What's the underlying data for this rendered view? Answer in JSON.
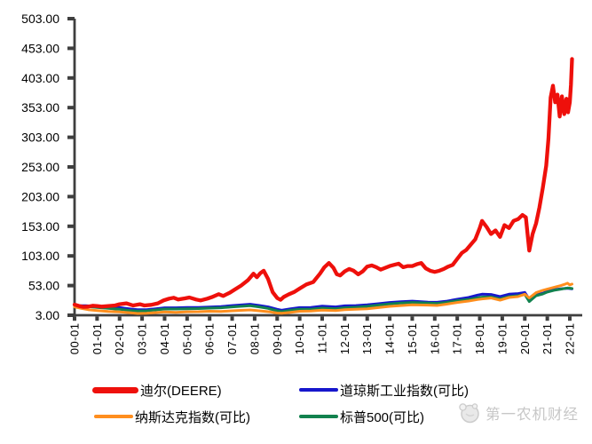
{
  "watermark": {
    "text": "第一农机财经",
    "logo": "panda-logo-icon"
  },
  "chart_data": {
    "type": "line",
    "title": "",
    "legend_position": "bottom",
    "x_axis": {
      "tick_labels": [
        "00-01",
        "01-01",
        "02-01",
        "03-01",
        "04-01",
        "05-01",
        "06-01",
        "07-01",
        "08-01",
        "09-01",
        "10-01",
        "11-01",
        "12-01",
        "13-01",
        "14-01",
        "15-01",
        "16-01",
        "17-01",
        "18-01",
        "19-01",
        "20-01",
        "21-01",
        "22-01"
      ],
      "tick_years": [
        2000,
        2001,
        2002,
        2003,
        2004,
        2005,
        2006,
        2007,
        2008,
        2009,
        2010,
        2011,
        2012,
        2013,
        2014,
        2015,
        2016,
        2017,
        2018,
        2019,
        2020,
        2021,
        2022
      ],
      "label_rotation_deg": -90
    },
    "y_axis": {
      "min": 3,
      "max": 503,
      "tick_values": [
        503,
        453,
        403,
        353,
        303,
        253,
        203,
        153,
        103,
        53,
        3
      ],
      "tick_labels": [
        "503.00",
        "453.00",
        "403.00",
        "353.00",
        "303.00",
        "253.00",
        "203.00",
        "153.00",
        "103.00",
        "53.00",
        "3.00"
      ]
    },
    "grid": false,
    "axis_color": "#3f3f3f",
    "series": [
      {
        "name": "迪尔(DEERE)",
        "color": "#ee100b",
        "width": 4.3,
        "points": [
          [
            2000.0,
            21
          ],
          [
            2000.2,
            18.5
          ],
          [
            2000.4,
            17
          ],
          [
            2000.6,
            17.5
          ],
          [
            2000.8,
            19
          ],
          [
            2001.0,
            18.5
          ],
          [
            2001.2,
            17.5
          ],
          [
            2001.5,
            18.5
          ],
          [
            2001.8,
            19.5
          ],
          [
            2002.0,
            21.5
          ],
          [
            2002.3,
            23
          ],
          [
            2002.6,
            19.5
          ],
          [
            2002.9,
            21.5
          ],
          [
            2003.1,
            19.5
          ],
          [
            2003.4,
            20.5
          ],
          [
            2003.7,
            23
          ],
          [
            2003.95,
            28
          ],
          [
            2004.2,
            31
          ],
          [
            2004.4,
            32.5
          ],
          [
            2004.6,
            29.5
          ],
          [
            2004.9,
            31.5
          ],
          [
            2005.1,
            33
          ],
          [
            2005.4,
            29.5
          ],
          [
            2005.6,
            28
          ],
          [
            2005.9,
            31
          ],
          [
            2006.1,
            33.5
          ],
          [
            2006.4,
            38.5
          ],
          [
            2006.6,
            35.5
          ],
          [
            2006.9,
            41
          ],
          [
            2007.1,
            46
          ],
          [
            2007.4,
            53
          ],
          [
            2007.7,
            62
          ],
          [
            2007.95,
            73
          ],
          [
            2008.1,
            67
          ],
          [
            2008.25,
            74
          ],
          [
            2008.4,
            78
          ],
          [
            2008.6,
            64
          ],
          [
            2008.8,
            42
          ],
          [
            2009.0,
            32
          ],
          [
            2009.15,
            29
          ],
          [
            2009.3,
            34
          ],
          [
            2009.5,
            38
          ],
          [
            2009.75,
            42
          ],
          [
            2010.0,
            48
          ],
          [
            2010.3,
            55
          ],
          [
            2010.6,
            59
          ],
          [
            2010.9,
            73
          ],
          [
            2011.1,
            84
          ],
          [
            2011.3,
            91
          ],
          [
            2011.5,
            83
          ],
          [
            2011.65,
            72
          ],
          [
            2011.8,
            70
          ],
          [
            2012.0,
            77
          ],
          [
            2012.2,
            81
          ],
          [
            2012.4,
            78
          ],
          [
            2012.6,
            72
          ],
          [
            2012.8,
            77
          ],
          [
            2013.0,
            85
          ],
          [
            2013.2,
            87
          ],
          [
            2013.4,
            84
          ],
          [
            2013.6,
            80
          ],
          [
            2013.8,
            83
          ],
          [
            2014.0,
            86
          ],
          [
            2014.2,
            88
          ],
          [
            2014.4,
            90
          ],
          [
            2014.6,
            84
          ],
          [
            2014.8,
            86
          ],
          [
            2015.0,
            86
          ],
          [
            2015.2,
            89
          ],
          [
            2015.4,
            91
          ],
          [
            2015.6,
            82
          ],
          [
            2015.8,
            78
          ],
          [
            2016.0,
            76
          ],
          [
            2016.2,
            78
          ],
          [
            2016.4,
            81
          ],
          [
            2016.6,
            85
          ],
          [
            2016.8,
            88
          ],
          [
            2017.0,
            98
          ],
          [
            2017.2,
            108
          ],
          [
            2017.4,
            113
          ],
          [
            2017.6,
            122
          ],
          [
            2017.8,
            131
          ],
          [
            2018.0,
            150
          ],
          [
            2018.1,
            162
          ],
          [
            2018.3,
            152
          ],
          [
            2018.5,
            140
          ],
          [
            2018.7,
            146
          ],
          [
            2018.9,
            135
          ],
          [
            2019.1,
            155
          ],
          [
            2019.3,
            150
          ],
          [
            2019.5,
            162
          ],
          [
            2019.7,
            165
          ],
          [
            2019.9,
            172
          ],
          [
            2020.05,
            168
          ],
          [
            2020.2,
            112
          ],
          [
            2020.35,
            140
          ],
          [
            2020.5,
            158
          ],
          [
            2020.65,
            185
          ],
          [
            2020.8,
            218
          ],
          [
            2020.95,
            255
          ],
          [
            2021.05,
            300
          ],
          [
            2021.15,
            370
          ],
          [
            2021.25,
            390
          ],
          [
            2021.35,
            362
          ],
          [
            2021.45,
            375
          ],
          [
            2021.55,
            338
          ],
          [
            2021.65,
            372
          ],
          [
            2021.75,
            342
          ],
          [
            2021.85,
            368
          ],
          [
            2021.92,
            345
          ],
          [
            2022.0,
            362
          ],
          [
            2022.05,
            392
          ],
          [
            2022.1,
            435
          ]
        ]
      },
      {
        "name": "道琼斯工业指数(可比)",
        "color": "#1616cc",
        "width": 3,
        "points": [
          [
            2000.0,
            19
          ],
          [
            2000.5,
            19
          ],
          [
            2001.0,
            18
          ],
          [
            2001.5,
            17
          ],
          [
            2002.0,
            16
          ],
          [
            2002.5,
            13.5
          ],
          [
            2002.8,
            12.5
          ],
          [
            2003.2,
            12.5
          ],
          [
            2003.6,
            14
          ],
          [
            2004.0,
            15.5
          ],
          [
            2004.5,
            15.5
          ],
          [
            2005.0,
            16
          ],
          [
            2005.5,
            16
          ],
          [
            2006.0,
            16.8
          ],
          [
            2006.5,
            17.5
          ],
          [
            2007.0,
            19.3
          ],
          [
            2007.8,
            21.5
          ],
          [
            2008.2,
            19.5
          ],
          [
            2008.6,
            17
          ],
          [
            2009.0,
            13
          ],
          [
            2009.2,
            11.5
          ],
          [
            2009.6,
            14
          ],
          [
            2010.0,
            15.8
          ],
          [
            2010.5,
            16
          ],
          [
            2011.0,
            18.2
          ],
          [
            2011.6,
            17
          ],
          [
            2012.0,
            18.8
          ],
          [
            2012.5,
            19.3
          ],
          [
            2013.0,
            20.5
          ],
          [
            2013.5,
            22.5
          ],
          [
            2014.0,
            24.5
          ],
          [
            2014.5,
            25.8
          ],
          [
            2015.0,
            26.8
          ],
          [
            2015.7,
            25
          ],
          [
            2016.1,
            24.8
          ],
          [
            2016.5,
            26.5
          ],
          [
            2017.0,
            30
          ],
          [
            2017.5,
            33
          ],
          [
            2017.9,
            37
          ],
          [
            2018.1,
            38.5
          ],
          [
            2018.5,
            38
          ],
          [
            2018.9,
            34.5
          ],
          [
            2019.3,
            38.5
          ],
          [
            2019.7,
            39.5
          ],
          [
            2020.0,
            41.5
          ],
          [
            2020.2,
            30
          ],
          [
            2020.5,
            38
          ],
          [
            2020.8,
            40
          ],
          [
            2021.0,
            43.5
          ],
          [
            2021.3,
            46
          ],
          [
            2021.6,
            47.5
          ],
          [
            2021.9,
            48.5
          ],
          [
            2022.1,
            47.5
          ]
        ]
      },
      {
        "name": "纳斯达克指数(可比)",
        "color": "#ff8e1e",
        "width": 3,
        "points": [
          [
            2000.0,
            17
          ],
          [
            2000.3,
            14.5
          ],
          [
            2000.6,
            12.5
          ],
          [
            2001.0,
            11
          ],
          [
            2001.5,
            9.5
          ],
          [
            2002.0,
            8.5
          ],
          [
            2002.5,
            7
          ],
          [
            2002.8,
            6
          ],
          [
            2003.2,
            6.5
          ],
          [
            2003.6,
            7.5
          ],
          [
            2004.0,
            8.5
          ],
          [
            2004.5,
            8
          ],
          [
            2005.0,
            8.8
          ],
          [
            2005.5,
            9
          ],
          [
            2006.0,
            9.8
          ],
          [
            2006.5,
            9.3
          ],
          [
            2007.0,
            10.5
          ],
          [
            2007.8,
            12
          ],
          [
            2008.2,
            10.5
          ],
          [
            2008.7,
            8.5
          ],
          [
            2009.0,
            6.8
          ],
          [
            2009.2,
            6.3
          ],
          [
            2009.6,
            8
          ],
          [
            2010.0,
            9.8
          ],
          [
            2010.5,
            10
          ],
          [
            2011.0,
            11.5
          ],
          [
            2011.6,
            11
          ],
          [
            2012.0,
            12.3
          ],
          [
            2012.5,
            13
          ],
          [
            2013.0,
            14
          ],
          [
            2013.5,
            15.8
          ],
          [
            2014.0,
            18
          ],
          [
            2014.5,
            19.3
          ],
          [
            2015.0,
            20.5
          ],
          [
            2015.7,
            20
          ],
          [
            2016.1,
            19.5
          ],
          [
            2016.5,
            21.5
          ],
          [
            2017.0,
            24.5
          ],
          [
            2017.5,
            27
          ],
          [
            2017.9,
            29.5
          ],
          [
            2018.1,
            30.5
          ],
          [
            2018.5,
            32
          ],
          [
            2018.9,
            28.5
          ],
          [
            2019.3,
            33
          ],
          [
            2019.7,
            34.5
          ],
          [
            2020.0,
            38.5
          ],
          [
            2020.2,
            32
          ],
          [
            2020.5,
            41
          ],
          [
            2020.8,
            45
          ],
          [
            2021.0,
            47
          ],
          [
            2021.3,
            50
          ],
          [
            2021.6,
            53
          ],
          [
            2021.8,
            55.5
          ],
          [
            2021.9,
            57
          ],
          [
            2022.0,
            54
          ],
          [
            2022.1,
            55.5
          ]
        ]
      },
      {
        "name": "标普500(可比)",
        "color": "#12824e",
        "width": 3,
        "points": [
          [
            2000.0,
            18
          ],
          [
            2000.5,
            18
          ],
          [
            2001.0,
            16
          ],
          [
            2001.5,
            14.5
          ],
          [
            2002.0,
            13
          ],
          [
            2002.5,
            11
          ],
          [
            2002.8,
            10
          ],
          [
            2003.2,
            10.5
          ],
          [
            2003.6,
            12
          ],
          [
            2004.0,
            13.5
          ],
          [
            2004.5,
            13.5
          ],
          [
            2005.0,
            14
          ],
          [
            2005.5,
            14.2
          ],
          [
            2006.0,
            15
          ],
          [
            2006.5,
            15.5
          ],
          [
            2007.0,
            17
          ],
          [
            2007.8,
            19
          ],
          [
            2008.2,
            17
          ],
          [
            2008.6,
            14.5
          ],
          [
            2009.0,
            10.5
          ],
          [
            2009.2,
            9
          ],
          [
            2009.6,
            11.5
          ],
          [
            2010.0,
            13
          ],
          [
            2010.5,
            13
          ],
          [
            2011.0,
            15
          ],
          [
            2011.6,
            14
          ],
          [
            2012.0,
            15.5
          ],
          [
            2012.5,
            16.5
          ],
          [
            2013.0,
            18
          ],
          [
            2013.5,
            20
          ],
          [
            2014.0,
            22
          ],
          [
            2014.5,
            23.5
          ],
          [
            2015.0,
            24.5
          ],
          [
            2015.7,
            23.5
          ],
          [
            2016.1,
            23
          ],
          [
            2016.5,
            24.5
          ],
          [
            2017.0,
            27.5
          ],
          [
            2017.5,
            29.5
          ],
          [
            2017.9,
            32.5
          ],
          [
            2018.1,
            33.5
          ],
          [
            2018.5,
            34
          ],
          [
            2018.9,
            30.5
          ],
          [
            2019.3,
            34.5
          ],
          [
            2019.7,
            36
          ],
          [
            2020.0,
            38
          ],
          [
            2020.2,
            26
          ],
          [
            2020.5,
            36
          ],
          [
            2020.8,
            39
          ],
          [
            2021.0,
            42
          ],
          [
            2021.3,
            45
          ],
          [
            2021.6,
            47
          ],
          [
            2021.9,
            49
          ],
          [
            2022.1,
            48
          ]
        ]
      }
    ]
  }
}
